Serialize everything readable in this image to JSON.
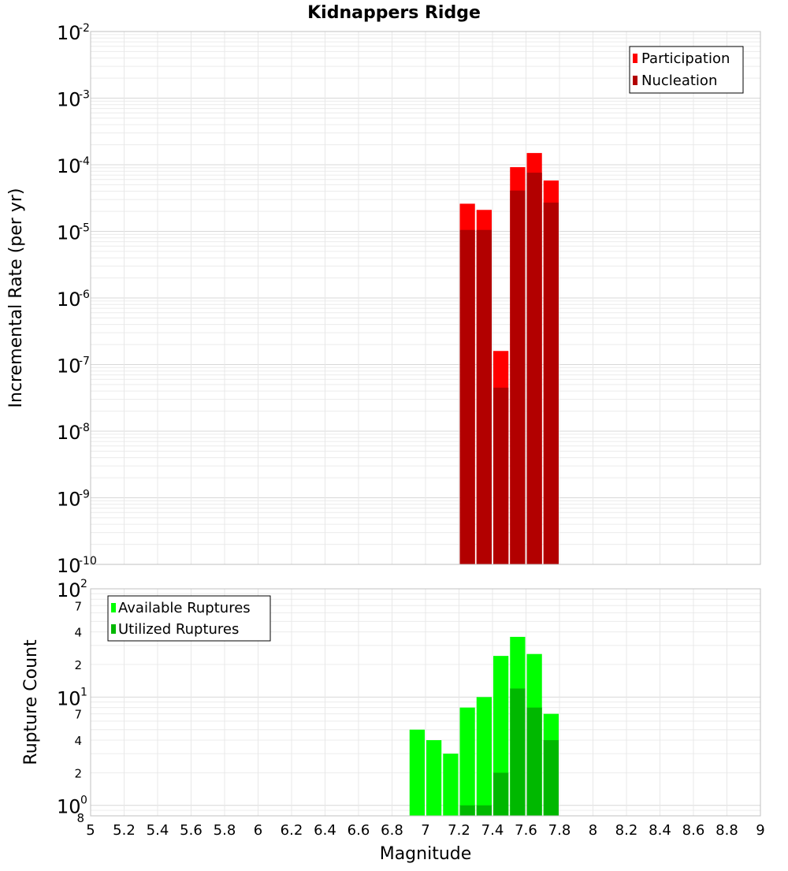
{
  "chart_data": [
    {
      "type": "bar",
      "title": "Kidnappers Ridge",
      "xlabel": "",
      "ylabel": "Incremental Rate (per yr)",
      "yscale": "log",
      "ylim": [
        1e-10,
        0.01
      ],
      "xlim": [
        5,
        9
      ],
      "y_ticks": [
        {
          "base": "10",
          "exp": "-10"
        },
        {
          "base": "10",
          "exp": "-9"
        },
        {
          "base": "10",
          "exp": "-8"
        },
        {
          "base": "10",
          "exp": "-7"
        },
        {
          "base": "10",
          "exp": "-6"
        },
        {
          "base": "10",
          "exp": "-5"
        },
        {
          "base": "10",
          "exp": "-4"
        },
        {
          "base": "10",
          "exp": "-3"
        },
        {
          "base": "10",
          "exp": "-2"
        }
      ],
      "bar_width": 0.1,
      "legend_position": "top-right",
      "series": [
        {
          "name": "Participation",
          "color": "#ff0000",
          "x": [
            7.25,
            7.35,
            7.45,
            7.55,
            7.65,
            7.75
          ],
          "values": [
            2.6e-05,
            2.1e-05,
            1.6e-07,
            9.2e-05,
            0.00015,
            5.8e-05
          ]
        },
        {
          "name": "Nucleation",
          "color": "#b20000",
          "x": [
            7.25,
            7.35,
            7.45,
            7.55,
            7.65,
            7.75
          ],
          "values": [
            1.05e-05,
            1.05e-05,
            4.5e-08,
            4.1e-05,
            7.6e-05,
            2.7e-05
          ]
        }
      ]
    },
    {
      "type": "bar",
      "title": "",
      "xlabel": "Magnitude",
      "ylabel": "Rupture Count",
      "yscale": "log",
      "ylim": [
        0.8,
        100
      ],
      "xlim": [
        5,
        9
      ],
      "x_ticks": [
        "5",
        "5.2",
        "5.4",
        "5.6",
        "5.8",
        "6",
        "6.2",
        "6.4",
        "6.6",
        "6.8",
        "7",
        "7.2",
        "7.4",
        "7.6",
        "7.8",
        "8",
        "8.2",
        "8.4",
        "8.6",
        "8.8",
        "9"
      ],
      "y_major_ticks": [
        {
          "base": "10",
          "exp": "0"
        },
        {
          "base": "10",
          "exp": "1"
        },
        {
          "base": "10",
          "exp": "2"
        }
      ],
      "y_minor_ticks": [
        "8",
        "2",
        "4",
        "7",
        "2",
        "4",
        "7"
      ],
      "bar_width": 0.1,
      "legend_position": "top-left",
      "series": [
        {
          "name": "Available Ruptures",
          "color": "#00ff00",
          "x": [
            6.95,
            7.05,
            7.15,
            7.25,
            7.35,
            7.45,
            7.55,
            7.65,
            7.75
          ],
          "values": [
            5,
            4,
            3,
            8,
            10,
            24,
            36,
            25,
            7
          ]
        },
        {
          "name": "Utilized Ruptures",
          "color": "#00b800",
          "x": [
            7.25,
            7.35,
            7.45,
            7.55,
            7.65,
            7.75
          ],
          "values": [
            1,
            1,
            2,
            12,
            8,
            4
          ]
        }
      ]
    }
  ]
}
